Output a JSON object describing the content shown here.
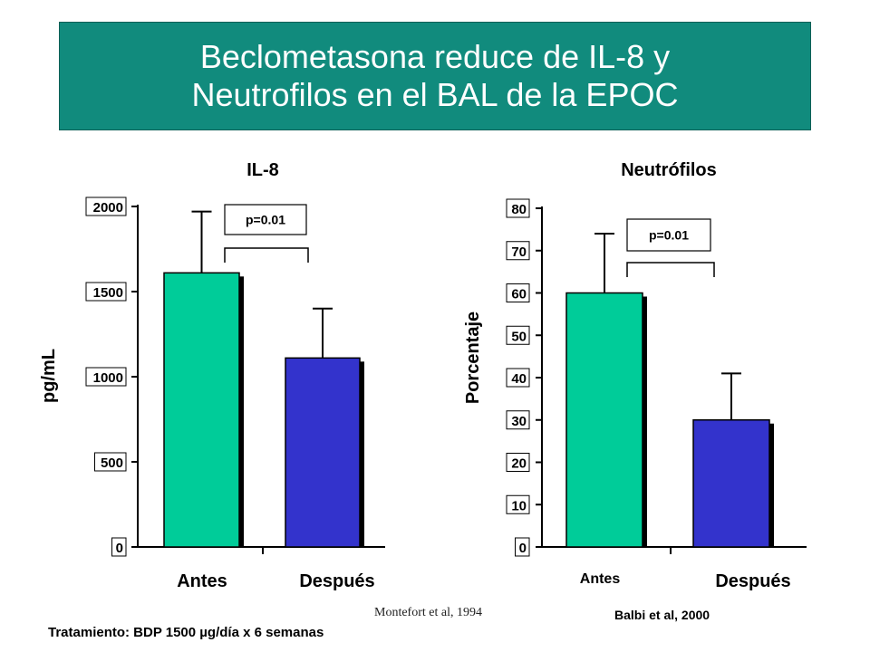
{
  "title": {
    "line1": "Beclometasona reduce de IL-8 y",
    "line2": "Neutrofilos en el BAL de la EPOC"
  },
  "colors": {
    "title_bg": "#118b7d",
    "antes": "#00cc99",
    "despues": "#3333cc"
  },
  "chart_data": [
    {
      "type": "bar",
      "title": "IL-8",
      "ylabel": "pg/mL",
      "categories": [
        "Antes",
        "Después"
      ],
      "values": [
        1610,
        1110
      ],
      "error_upper": [
        1970,
        1400
      ],
      "ylim": [
        0,
        2000
      ],
      "yticks": [
        "0",
        "500",
        "1000",
        "1500",
        "2000"
      ],
      "ytick_values": [
        0,
        500,
        1000,
        1500,
        2000
      ],
      "annotation": "p=0.01",
      "grid": false,
      "legend": "none"
    },
    {
      "type": "bar",
      "title": "Neutrófilos",
      "ylabel": "Porcentaje",
      "categories": [
        "Antes",
        "Después"
      ],
      "values": [
        60,
        30
      ],
      "error_upper": [
        74,
        41
      ],
      "ylim": [
        0,
        80
      ],
      "yticks": [
        "0",
        "10",
        "20",
        "30",
        "40",
        "50",
        "60",
        "70",
        "80"
      ],
      "ytick_values": [
        0,
        10,
        20,
        30,
        40,
        50,
        60,
        70,
        80
      ],
      "annotation": "p=0.01",
      "grid": false,
      "legend": "none"
    }
  ],
  "footer": {
    "citation_left": "Montefort et al, 1994",
    "treatment": "Tratamiento: BDP 1500 µg/día x 6 semanas",
    "citation_right": "Balbi et al, 2000"
  }
}
